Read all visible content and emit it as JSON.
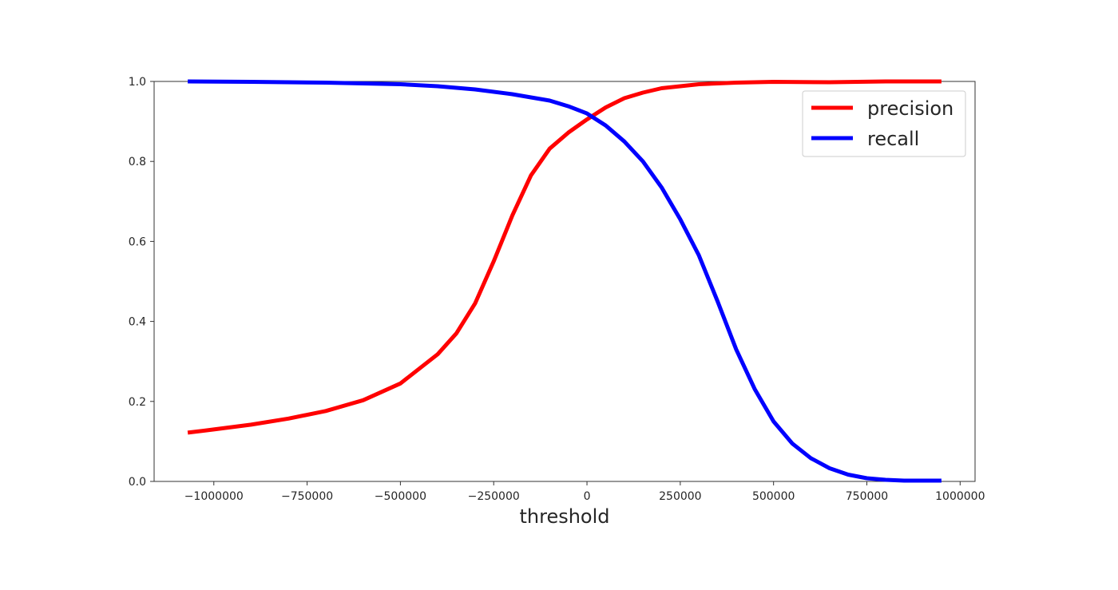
{
  "chart_data": {
    "type": "line",
    "xlabel": "threshold",
    "ylabel": "",
    "xlim": [
      -1160000,
      1040000
    ],
    "ylim": [
      0.0,
      1.0
    ],
    "x_ticks": [
      -1000000,
      -750000,
      -500000,
      -250000,
      0,
      250000,
      500000,
      750000,
      1000000
    ],
    "x_tick_labels": [
      "−1000000",
      "−750000",
      "−500000",
      "−250000",
      "0",
      "250000",
      "500000",
      "750000",
      "1000000"
    ],
    "y_ticks": [
      0.0,
      0.2,
      0.4,
      0.6,
      0.8,
      1.0
    ],
    "y_tick_labels": [
      "0.0",
      "0.2",
      "0.4",
      "0.6",
      "0.8",
      "1.0"
    ],
    "grid": false,
    "legend": {
      "position": "top-right"
    },
    "series": [
      {
        "name": "precision",
        "color": "#ff0000",
        "x": [
          -1070000,
          -1000000,
          -900000,
          -800000,
          -700000,
          -600000,
          -500000,
          -400000,
          -350000,
          -300000,
          -250000,
          -200000,
          -150000,
          -100000,
          -50000,
          0,
          50000,
          100000,
          150000,
          200000,
          300000,
          400000,
          500000,
          650000,
          800000,
          950000
        ],
        "y": [
          0.122,
          0.13,
          0.142,
          0.157,
          0.176,
          0.203,
          0.245,
          0.318,
          0.37,
          0.445,
          0.55,
          0.665,
          0.765,
          0.832,
          0.872,
          0.905,
          0.935,
          0.958,
          0.972,
          0.983,
          0.993,
          0.997,
          0.999,
          0.998,
          1.0,
          1.0
        ]
      },
      {
        "name": "recall",
        "color": "#0000ff",
        "x": [
          -1070000,
          -900000,
          -700000,
          -500000,
          -400000,
          -300000,
          -200000,
          -150000,
          -100000,
          -50000,
          0,
          50000,
          100000,
          150000,
          200000,
          250000,
          300000,
          350000,
          400000,
          450000,
          500000,
          550000,
          600000,
          650000,
          700000,
          750000,
          800000,
          850000,
          950000
        ],
        "y": [
          1.0,
          0.999,
          0.997,
          0.993,
          0.988,
          0.98,
          0.968,
          0.96,
          0.952,
          0.938,
          0.92,
          0.89,
          0.85,
          0.8,
          0.735,
          0.655,
          0.565,
          0.45,
          0.33,
          0.23,
          0.15,
          0.095,
          0.058,
          0.033,
          0.017,
          0.008,
          0.004,
          0.002,
          0.002
        ]
      }
    ]
  }
}
